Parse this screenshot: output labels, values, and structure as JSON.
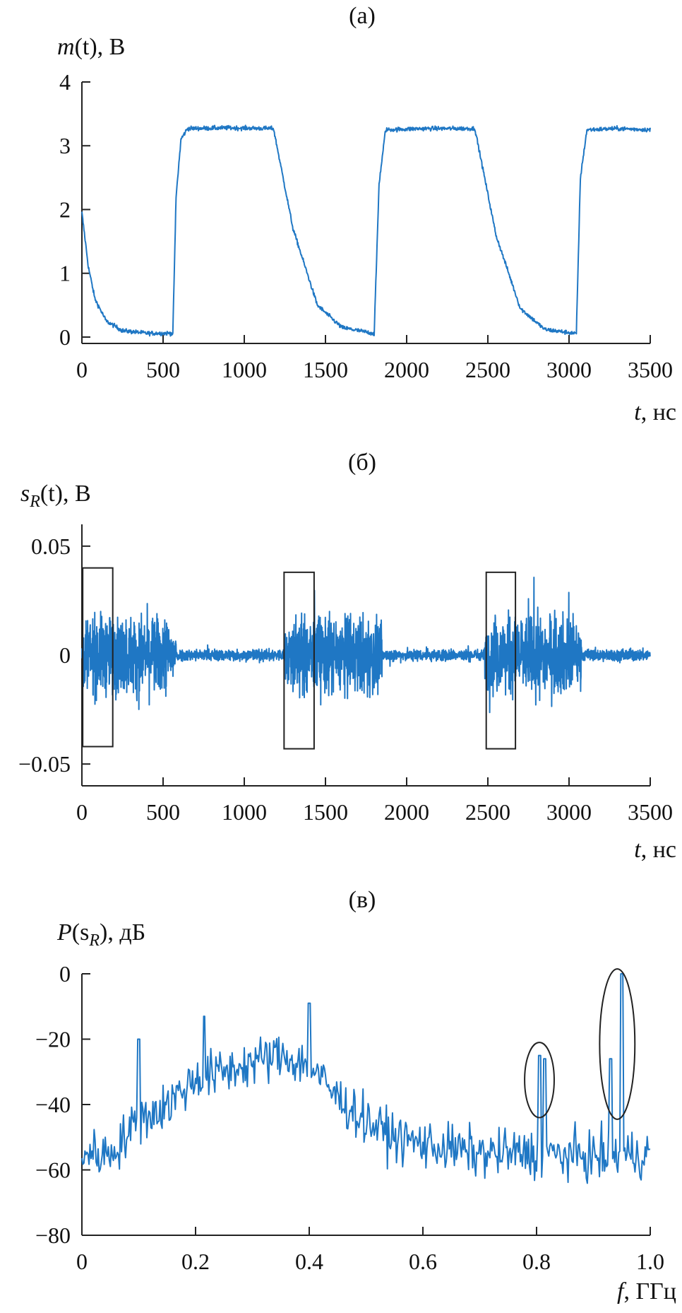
{
  "panels": {
    "a": {
      "title": "(а)"
    },
    "b": {
      "title": "(б)"
    },
    "c": {
      "title": "(в)"
    }
  },
  "chart_data": [
    {
      "id": "a",
      "type": "line",
      "title": "(а)",
      "ylabel": {
        "var": "m",
        "arg": "(t)",
        "unit": ", В"
      },
      "xlabel": {
        "var": "t",
        "unit": ", нс"
      },
      "xlim": [
        0,
        3500
      ],
      "ylim": [
        -0.1,
        4
      ],
      "xticks": [
        0,
        500,
        1000,
        1500,
        2000,
        2500,
        3000,
        3500
      ],
      "yticks": [
        0,
        1,
        2,
        3,
        4
      ],
      "color": "#1f77c4",
      "series": [
        {
          "description_points": [
            [
              0,
              1.95
            ],
            [
              40,
              1.1
            ],
            [
              80,
              0.6
            ],
            [
              150,
              0.25
            ],
            [
              250,
              0.1
            ],
            [
              400,
              0.06
            ],
            [
              550,
              0.06
            ],
            [
              560,
              0.05
            ],
            [
              580,
              2.2
            ],
            [
              610,
              3.1
            ],
            [
              650,
              3.27
            ],
            [
              900,
              3.28
            ],
            [
              1180,
              3.27
            ],
            [
              1300,
              1.7
            ],
            [
              1450,
              0.5
            ],
            [
              1600,
              0.15
            ],
            [
              1790,
              0.06
            ],
            [
              1800,
              0.05
            ],
            [
              1830,
              2.4
            ],
            [
              1870,
              3.25
            ],
            [
              2100,
              3.27
            ],
            [
              2420,
              3.27
            ],
            [
              2550,
              1.6
            ],
            [
              2700,
              0.45
            ],
            [
              2850,
              0.12
            ],
            [
              3030,
              0.06
            ],
            [
              3045,
              0.05
            ],
            [
              3070,
              2.5
            ],
            [
              3110,
              3.25
            ],
            [
              3300,
              3.27
            ],
            [
              3500,
              3.25
            ]
          ]
        }
      ]
    },
    {
      "id": "b",
      "type": "line",
      "title": "(б)",
      "ylabel": {
        "var": "s",
        "sub": "R",
        "arg": "(t)",
        "unit": ", В"
      },
      "xlabel": {
        "var": "t",
        "unit": ", нс"
      },
      "xlim": [
        0,
        3500
      ],
      "ylim": [
        -0.06,
        0.06
      ],
      "xticks": [
        0,
        500,
        1000,
        1500,
        2000,
        2500,
        3000,
        3500
      ],
      "yticks": [
        0.05,
        0,
        -0.05
      ],
      "ytick_labels": [
        "0.05",
        "0",
        "−0.05"
      ],
      "color": "#1f77c4",
      "burst_intervals_ns": [
        [
          0,
          580
        ],
        [
          1250,
          1850
        ],
        [
          2480,
          3080
        ]
      ],
      "burst_amplitude": 0.04,
      "quiet_amplitude": 0.006,
      "highlight_boxes_ns": [
        [
          5,
          190
        ],
        [
          1245,
          1430
        ],
        [
          2490,
          2670
        ]
      ],
      "highlight_boxes_v": [
        [
          -0.042,
          0.04
        ],
        [
          -0.043,
          0.038
        ],
        [
          -0.043,
          0.038
        ]
      ]
    },
    {
      "id": "c",
      "type": "line",
      "title": "(в)",
      "ylabel": {
        "var": "P",
        "arg": "(s",
        "sub": "R",
        "close": ")",
        "unit": ", дБ"
      },
      "xlabel": {
        "var": "f",
        "unit": ", ГГц"
      },
      "xlim": [
        0,
        1.0
      ],
      "ylim": [
        -80,
        0
      ],
      "xticks": [
        0,
        0.2,
        0.4,
        0.6,
        0.8,
        1.0
      ],
      "xtick_labels": [
        "0",
        "0.2",
        "0.4",
        "0.6",
        "0.8",
        "1.0"
      ],
      "yticks": [
        0,
        -20,
        -40,
        -60,
        -80
      ],
      "ytick_labels": [
        "0",
        "−20",
        "−40",
        "−60",
        "−80"
      ],
      "color": "#1f77c4",
      "envelope": [
        [
          0.0,
          -55
        ],
        [
          0.05,
          -55
        ],
        [
          0.1,
          -45
        ],
        [
          0.15,
          -40
        ],
        [
          0.2,
          -32
        ],
        [
          0.25,
          -30
        ],
        [
          0.3,
          -27
        ],
        [
          0.35,
          -25
        ],
        [
          0.4,
          -28
        ],
        [
          0.45,
          -38
        ],
        [
          0.5,
          -45
        ],
        [
          0.55,
          -50
        ],
        [
          0.6,
          -52
        ],
        [
          0.7,
          -55
        ],
        [
          0.8,
          -55
        ],
        [
          0.9,
          -56
        ],
        [
          1.0,
          -55
        ]
      ],
      "peaks": [
        [
          0.1,
          -20
        ],
        [
          0.215,
          -13
        ],
        [
          0.4,
          -9
        ],
        [
          0.805,
          -25
        ],
        [
          0.815,
          -26
        ],
        [
          0.93,
          -26
        ],
        [
          0.95,
          0
        ]
      ],
      "highlight_ellipses": [
        {
          "cx": 0.805,
          "cy": -32.5,
          "rx": 0.026,
          "ry": 11.5
        },
        {
          "cx": 0.942,
          "cy": -21.5,
          "rx": 0.031,
          "ry": 23
        }
      ]
    }
  ]
}
